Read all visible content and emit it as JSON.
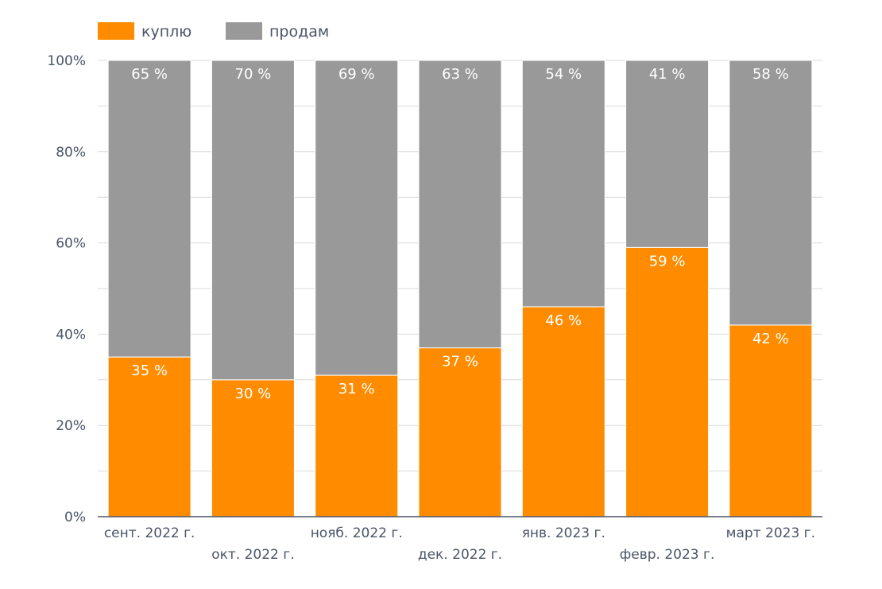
{
  "colors": {
    "buy": "#ff8c00",
    "sell": "#999999",
    "grid": "#d9d9d9",
    "axis": "#4a5568"
  },
  "chart_data": {
    "type": "bar",
    "stacked": true,
    "title": "",
    "xlabel": "",
    "ylabel": "",
    "ylim": [
      0,
      100
    ],
    "y_ticks": [
      "0%",
      "20%",
      "40%",
      "60%",
      "80%",
      "100%"
    ],
    "categories": [
      "сент. 2022 г.",
      "окт. 2022 г.",
      "нояб. 2022 г.",
      "дек. 2022 г.",
      "янв. 2023 г.",
      "февр. 2023 г.",
      "март 2023 г."
    ],
    "legend_position": "top-left",
    "series": [
      {
        "name": "куплю",
        "color": "#ff8c00",
        "values": [
          35,
          30,
          31,
          37,
          46,
          59,
          42
        ],
        "labels": [
          "35 %",
          "30 %",
          "31 %",
          "37 %",
          "46 %",
          "59 %",
          "42 %"
        ]
      },
      {
        "name": "продам",
        "color": "#999999",
        "values": [
          65,
          70,
          69,
          63,
          54,
          41,
          58
        ],
        "labels": [
          "65 %",
          "70 %",
          "69 %",
          "63 %",
          "54 %",
          "41 %",
          "58 %"
        ]
      }
    ]
  }
}
